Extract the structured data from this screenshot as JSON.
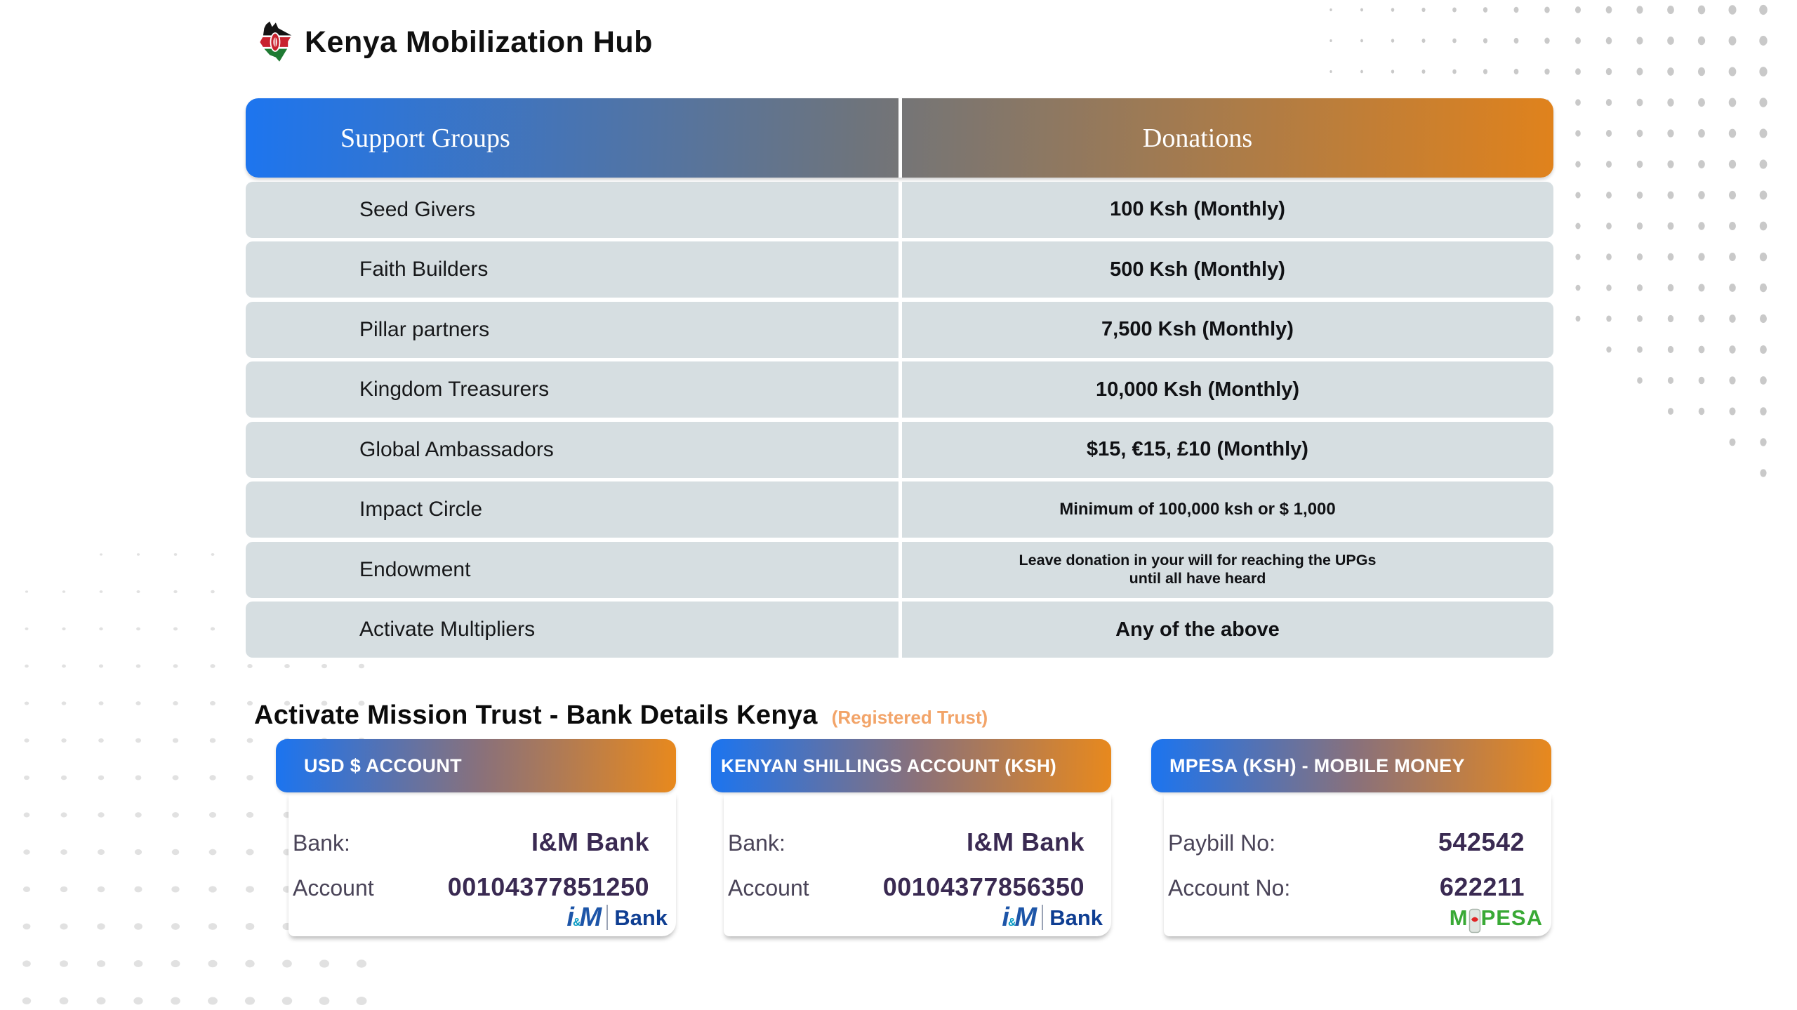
{
  "header": {
    "title": "Kenya Mobilization Hub",
    "logo": "kenya-map-flag-icon"
  },
  "table": {
    "columns": [
      "Support Groups",
      "Donations"
    ],
    "rows": [
      {
        "group": "Seed Givers",
        "donation": "100 Ksh (Monthly)"
      },
      {
        "group": "Faith Builders",
        "donation": "500 Ksh (Monthly)"
      },
      {
        "group": "Pillar partners",
        "donation": "7,500 Ksh (Monthly)"
      },
      {
        "group": "Kingdom Treasurers",
        "donation": "10,000 Ksh (Monthly)"
      },
      {
        "group": "Global Ambassadors",
        "donation": "$15, €15, £10 (Monthly)"
      },
      {
        "group": "Impact Circle",
        "donation": "Minimum of 100,000 ksh or $ 1,000"
      },
      {
        "group": "Endowment",
        "donation": "Leave donation in your will for reaching the UPGs until all have heard"
      },
      {
        "group": "Activate Multipliers",
        "donation": "Any of the above"
      }
    ]
  },
  "bank_section": {
    "heading": "Activate Mission Trust  - Bank Details Kenya",
    "badge": "(Registered Trust)",
    "cards": [
      {
        "title": "USD $ ACCOUNT",
        "rows": [
          {
            "label": "Bank:",
            "value": "I&M Bank"
          },
          {
            "label": "Account",
            "value": "00104377851250"
          }
        ],
        "logo": "I&M Bank"
      },
      {
        "title": "KENYAN SHILLINGS ACCOUNT (KSH)",
        "rows": [
          {
            "label": "Bank:",
            "value": "I&M Bank"
          },
          {
            "label": "Account",
            "value": "00104377856350"
          }
        ],
        "logo": "I&M Bank"
      },
      {
        "title": "MPESA (KSH) - MOBILE MONEY",
        "rows": [
          {
            "label": "Paybill No:",
            "value": "542542"
          },
          {
            "label": "Account No:",
            "value": "622211"
          }
        ],
        "logo": "M-PESA"
      }
    ]
  },
  "logos": {
    "im": {
      "i": "i",
      "amp": "&",
      "m": "M",
      "word": "Bank"
    },
    "mpesa": {
      "m": "M",
      "pesa": "PESA"
    }
  },
  "colors": {
    "accent_blue": "#1b74f0",
    "accent_orange": "#e0821c",
    "row_background": "#d6dee1",
    "card_value_purple": "#3a2a52",
    "card_label_gray": "#4a4458",
    "badge_orange": "#f2a469",
    "mpesa_green": "#39a935",
    "im_bank_blue": "#0f3e92",
    "dot_gray_top_right": "#c9c9c9",
    "dot_gray_bottom_left": "#e1e1e1"
  }
}
